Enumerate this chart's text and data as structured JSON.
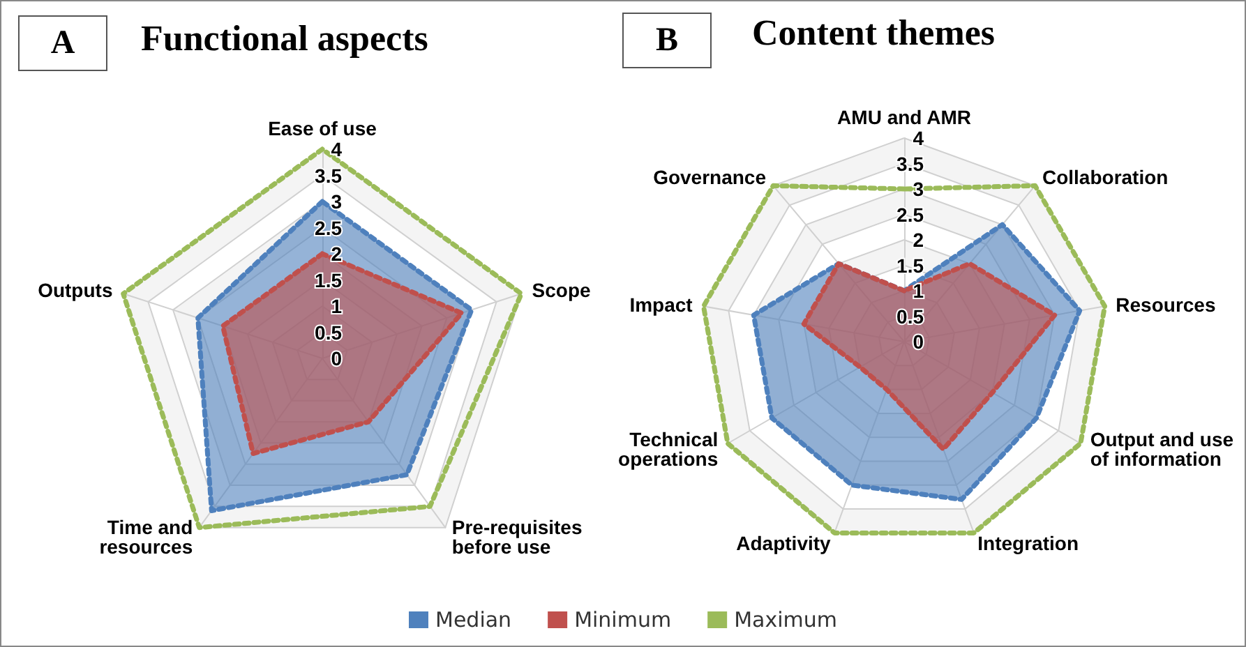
{
  "chart_data": [
    {
      "type": "radar",
      "title": "Functional aspects",
      "annotations": [
        "A"
      ],
      "categories": [
        "Ease of use",
        "Scope",
        "Pre-requisites\nbefore use",
        "Time and\nresources",
        "Outputs"
      ],
      "ylim": [
        0,
        4
      ],
      "yticks": [
        0,
        0.5,
        1,
        1.5,
        2,
        2.5,
        3,
        3.5,
        4
      ],
      "grid": true,
      "legend": "bottom",
      "marker": "none",
      "line_style": "dotted",
      "series": [
        {
          "name": "Median",
          "type": "area",
          "color": "#4f81bd",
          "values": [
            3,
            3,
            2.75,
            3.6,
            2.5
          ]
        },
        {
          "name": "Minimum",
          "type": "area",
          "color": "#c0504d",
          "values": [
            2,
            2.8,
            1.5,
            2.25,
            2
          ]
        },
        {
          "name": "Maximum",
          "type": "radar",
          "color": "#9bbb59",
          "values": [
            4,
            4,
            3.5,
            4,
            4
          ]
        }
      ]
    },
    {
      "type": "radar",
      "title": "Content themes",
      "annotations": [
        "B"
      ],
      "categories": [
        "AMU and AMR",
        "Collaboration",
        "Resources",
        "Output and use\nof information",
        "Integration",
        "Adaptivity",
        "Technical\noperations",
        "Impact",
        "Governance"
      ],
      "ylim": [
        0,
        4
      ],
      "yticks": [
        0,
        0.5,
        1,
        1.5,
        2,
        2.5,
        3,
        3.5,
        4
      ],
      "grid": true,
      "marker": "none",
      "line_style": "dotted",
      "series": [
        {
          "type": "area",
          "color": "#4f81bd",
          "values": [
            1,
            3,
            3.5,
            3,
            3.3,
            3,
            3,
            3,
            2
          ]
        },
        {
          "type": "area",
          "color": "#c0504d",
          "values": [
            1,
            2,
            3,
            2,
            2.25,
            1,
            1,
            2,
            2
          ]
        },
        {
          "type": "radar",
          "color": "#9bbb59",
          "values": [
            3,
            4,
            4,
            4,
            4,
            4,
            4,
            4,
            4
          ]
        }
      ]
    }
  ]
}
